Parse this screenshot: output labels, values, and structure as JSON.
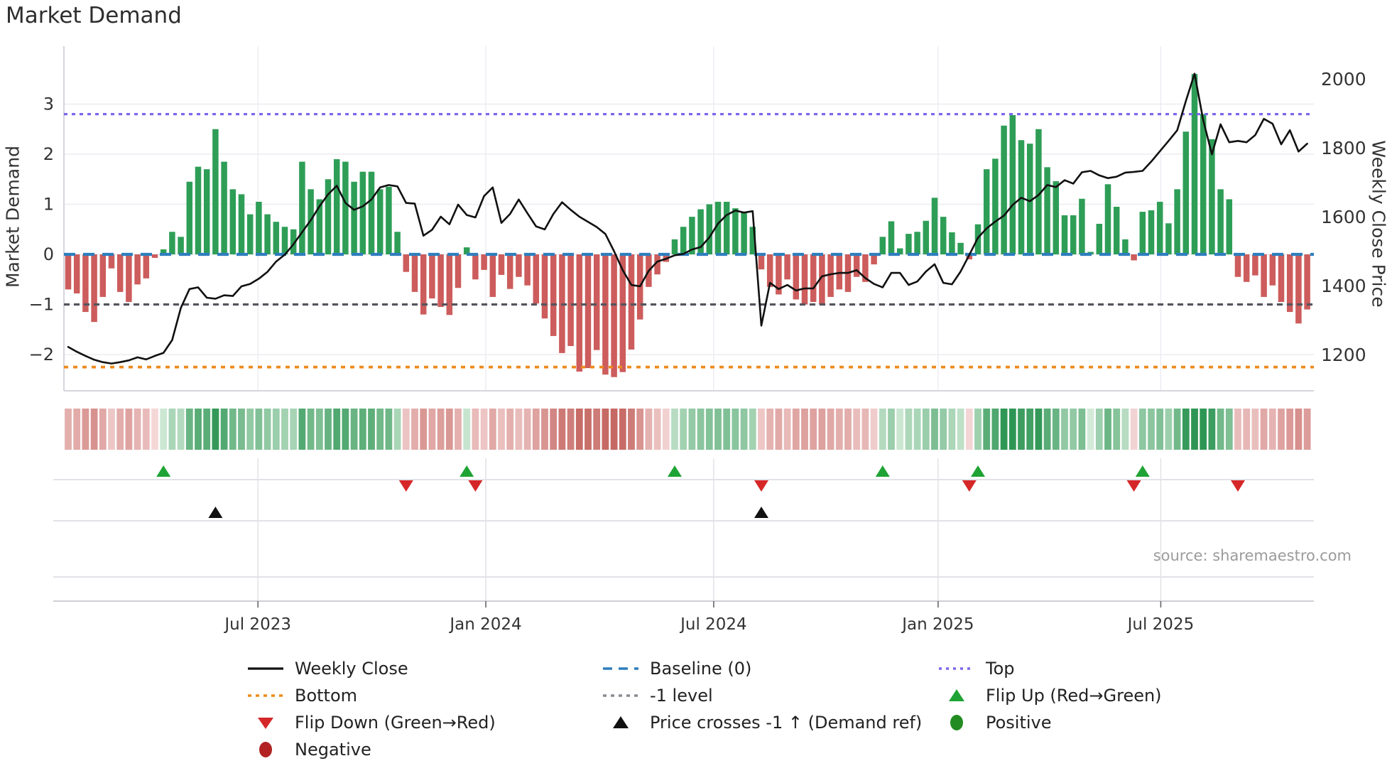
{
  "title": "Market Demand",
  "source": "source: sharemaestro.com",
  "axes": {
    "left_label": "Market Demand",
    "right_label": "Weekly Close Price",
    "left_ticks": [
      {
        "label": "3",
        "value": 3
      },
      {
        "label": "2",
        "value": 2
      },
      {
        "label": "1",
        "value": 1
      },
      {
        "label": "0",
        "value": 0
      },
      {
        "label": "−1",
        "value": -1
      },
      {
        "label": "−2",
        "value": -2
      }
    ],
    "right_ticks": [
      {
        "label": "2000",
        "value": 2000
      },
      {
        "label": "1800",
        "value": 1800
      },
      {
        "label": "1600",
        "value": 1600
      },
      {
        "label": "1400",
        "value": 1400
      },
      {
        "label": "1200",
        "value": 1200
      }
    ],
    "x_ticks": [
      {
        "label": "Jul 2023",
        "week": 21.9
      },
      {
        "label": "Jan 2024",
        "week": 48.2
      },
      {
        "label": "Jul 2024",
        "week": 74.5
      },
      {
        "label": "Jan 2025",
        "week": 100.4
      },
      {
        "label": "Jul 2025",
        "week": 126.1
      }
    ]
  },
  "ref_lines": {
    "baseline": {
      "label": "Baseline (0)",
      "value": 0,
      "color": "#2e7ebe"
    },
    "top": {
      "label": "Top",
      "value": 2.8,
      "color": "#7b68ee"
    },
    "minus1": {
      "label": "-1 level",
      "value": -1,
      "color": "#55555e"
    },
    "bottom": {
      "label": "Bottom",
      "value": -2.25,
      "color": "#ee8a1c"
    }
  },
  "colors": {
    "bar_positive": "#2e9e57",
    "bar_negative": "#cd5c5c",
    "price_line": "#111111",
    "flip_up": "#1fa335",
    "flip_down": "#d62728",
    "price_cross": "#111111",
    "positive_dot": "#228b22",
    "negative_dot": "#b22222",
    "grid": "#ececf2",
    "spine": "#d5d5dd",
    "tick_text": "#333333"
  },
  "legend": {
    "columns": [
      [
        {
          "label": "Weekly Close",
          "swatch": "line-black"
        },
        {
          "label": "Bottom",
          "swatch": "dotted-orange"
        },
        {
          "label": "Flip Down (Green→Red)",
          "swatch": "triangle-down-red"
        },
        {
          "label": "Negative",
          "swatch": "circle-darkred"
        }
      ],
      [
        {
          "label": "Baseline (0)",
          "swatch": "dashed-blue"
        },
        {
          "label": "-1 level",
          "swatch": "dotted-gray"
        },
        {
          "label": "Price crosses -1 ↑ (Demand ref)",
          "swatch": "triangle-up-black"
        }
      ],
      [
        {
          "label": "Top",
          "swatch": "dotted-purple"
        },
        {
          "label": "Flip Up (Red→Green)",
          "swatch": "triangle-up-green"
        },
        {
          "label": "Positive",
          "swatch": "circle-green"
        }
      ]
    ]
  },
  "chart_data": {
    "type": [
      "bar",
      "line",
      "heatmap"
    ],
    "title": "Market Demand",
    "xlabel": "",
    "ylabel_left": "Market Demand",
    "ylabel_right": "Weekly Close Price",
    "x_unit": "week",
    "x_range_labels": [
      "Feb 2023",
      "Sep 2025"
    ],
    "demand_ylim": [
      -2.7,
      4.1
    ],
    "price_ylim": [
      1100,
      2090
    ],
    "grid": true,
    "legend_position": "bottom",
    "demand": [
      -0.7,
      -0.78,
      -1.15,
      -1.35,
      -0.85,
      -0.28,
      -0.75,
      -0.95,
      -0.6,
      -0.48,
      -0.07,
      0.1,
      0.45,
      0.35,
      1.45,
      1.75,
      1.7,
      2.5,
      1.85,
      1.3,
      1.2,
      0.8,
      1.05,
      0.8,
      0.65,
      0.55,
      0.5,
      1.85,
      1.3,
      1.1,
      1.5,
      1.9,
      1.85,
      1.45,
      1.65,
      1.65,
      1.3,
      1.35,
      0.45,
      -0.35,
      -0.75,
      -1.2,
      -0.88,
      -1.05,
      -1.21,
      -0.67,
      0.14,
      -0.5,
      -0.31,
      -0.85,
      -0.41,
      -0.69,
      -0.45,
      -0.62,
      -0.98,
      -1.28,
      -1.63,
      -1.97,
      -1.83,
      -2.34,
      -2.27,
      -1.91,
      -2.4,
      -2.45,
      -2.35,
      -1.9,
      -1.3,
      -0.65,
      -0.4,
      -0.15,
      0.3,
      0.55,
      0.75,
      0.9,
      1.0,
      1.05,
      1.05,
      0.92,
      0.85,
      0.55,
      -0.3,
      -0.65,
      -0.8,
      -0.5,
      -0.9,
      -1.0,
      -0.95,
      -1.0,
      -0.85,
      -0.7,
      -0.75,
      -0.45,
      -0.55,
      -0.2,
      0.35,
      0.66,
      0.12,
      0.41,
      0.45,
      0.67,
      1.13,
      0.75,
      0.44,
      0.23,
      -0.1,
      0.6,
      1.7,
      1.91,
      2.57,
      2.78,
      2.28,
      2.21,
      2.5,
      1.74,
      1.46,
      0.78,
      0.78,
      1.11,
      0.05,
      0.61,
      1.4,
      0.95,
      0.3,
      -0.12,
      0.85,
      0.88,
      1.05,
      0.62,
      1.3,
      2.45,
      3.6,
      2.8,
      2.3,
      1.3,
      1.1,
      -0.45,
      -0.55,
      -0.42,
      -0.85,
      -0.62,
      -0.95,
      -1.15,
      -1.38,
      -1.1
    ],
    "price": [
      1222,
      1208,
      1196,
      1185,
      1178,
      1174,
      1178,
      1183,
      1192,
      1186,
      1196,
      1205,
      1242,
      1335,
      1390,
      1395,
      1365,
      1362,
      1372,
      1370,
      1398,
      1405,
      1420,
      1440,
      1470,
      1490,
      1520,
      1555,
      1590,
      1630,
      1665,
      1690,
      1640,
      1620,
      1630,
      1650,
      1685,
      1692,
      1688,
      1640,
      1638,
      1545,
      1562,
      1600,
      1578,
      1635,
      1605,
      1598,
      1660,
      1685,
      1582,
      1608,
      1650,
      1610,
      1572,
      1563,
      1608,
      1642,
      1620,
      1600,
      1585,
      1570,
      1550,
      1500,
      1445,
      1402,
      1398,
      1443,
      1470,
      1478,
      1488,
      1492,
      1505,
      1512,
      1540,
      1580,
      1605,
      1618,
      1612,
      1616,
      1284,
      1408,
      1390,
      1402,
      1386,
      1392,
      1392,
      1427,
      1433,
      1437,
      1437,
      1445,
      1422,
      1405,
      1395,
      1437,
      1437,
      1402,
      1412,
      1441,
      1462,
      1408,
      1404,
      1441,
      1489,
      1539,
      1566,
      1586,
      1603,
      1634,
      1655,
      1645,
      1663,
      1692,
      1686,
      1706,
      1696,
      1729,
      1733,
      1720,
      1712,
      1716,
      1728,
      1730,
      1733,
      1760,
      1790,
      1820,
      1851,
      1936,
      2015,
      1880,
      1781,
      1868,
      1816,
      1820,
      1816,
      1837,
      1884,
      1870,
      1810,
      1851,
      1789,
      1812
    ],
    "flip_up_weeks": [
      11,
      46,
      70,
      94,
      105,
      124
    ],
    "flip_down_weeks": [
      39,
      47,
      80,
      104,
      123,
      135
    ],
    "price_cross_weeks": [
      17,
      80
    ]
  }
}
